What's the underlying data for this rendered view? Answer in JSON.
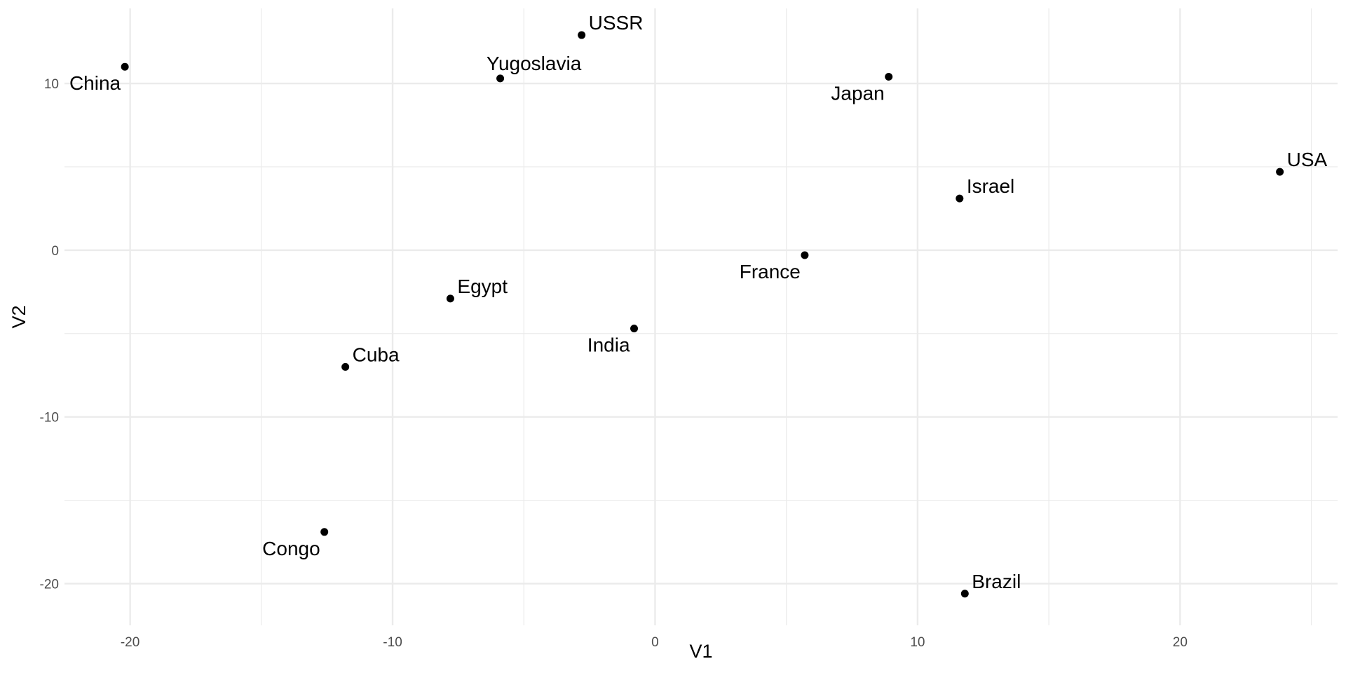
{
  "chart_data": {
    "type": "scatter",
    "title": "",
    "xlabel": "V1",
    "ylabel": "V2",
    "xlim": [
      -22.5,
      26
    ],
    "ylim": [
      -22.5,
      14.5
    ],
    "x_ticks": [
      -20,
      -10,
      0,
      10,
      20
    ],
    "y_ticks": [
      -20,
      -10,
      0,
      10
    ],
    "x_minor_ticks": [
      -15,
      -5,
      5,
      15,
      25
    ],
    "y_minor_ticks": [
      -15,
      -5,
      5
    ],
    "grid": true,
    "legend": "none",
    "point_color": "#000000",
    "grid_color": "#ebebeb",
    "points": [
      {
        "label": "China",
        "x": -20.2,
        "y": 11.0,
        "label_pos": "below-left"
      },
      {
        "label": "USSR",
        "x": -2.8,
        "y": 12.9,
        "label_pos": "above-right"
      },
      {
        "label": "Yugoslavia",
        "x": -5.9,
        "y": 10.3,
        "label_pos": "above"
      },
      {
        "label": "Japan",
        "x": 8.9,
        "y": 10.4,
        "label_pos": "below-left"
      },
      {
        "label": "USA",
        "x": 23.8,
        "y": 4.7,
        "label_pos": "above-right"
      },
      {
        "label": "Israel",
        "x": 11.6,
        "y": 3.1,
        "label_pos": "above-right"
      },
      {
        "label": "France",
        "x": 5.7,
        "y": -0.3,
        "label_pos": "below-left"
      },
      {
        "label": "Egypt",
        "x": -7.8,
        "y": -2.9,
        "label_pos": "above-right"
      },
      {
        "label": "India",
        "x": -0.8,
        "y": -4.7,
        "label_pos": "below-left"
      },
      {
        "label": "Cuba",
        "x": -11.8,
        "y": -7.0,
        "label_pos": "above-right"
      },
      {
        "label": "Congo",
        "x": -12.6,
        "y": -16.9,
        "label_pos": "below-left"
      },
      {
        "label": "Brazil",
        "x": 11.8,
        "y": -20.6,
        "label_pos": "above-right"
      }
    ]
  }
}
